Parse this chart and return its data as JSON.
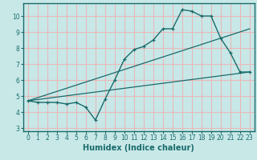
{
  "title": "",
  "xlabel": "Humidex (Indice chaleur)",
  "background_color": "#c8e8e8",
  "grid_color": "#e8b8b8",
  "line_color": "#1a6b6b",
  "xlim": [
    -0.5,
    23.5
  ],
  "ylim": [
    2.8,
    10.8
  ],
  "yticks": [
    3,
    4,
    5,
    6,
    7,
    8,
    9,
    10
  ],
  "xticks": [
    0,
    1,
    2,
    3,
    4,
    5,
    6,
    7,
    8,
    9,
    10,
    11,
    12,
    13,
    14,
    15,
    16,
    17,
    18,
    19,
    20,
    21,
    22,
    23
  ],
  "line1_x": [
    0,
    1,
    2,
    3,
    4,
    5,
    6,
    7,
    8,
    9,
    10,
    11,
    12,
    13,
    14,
    15,
    16,
    17,
    18,
    19,
    20,
    21,
    22,
    23
  ],
  "line1_y": [
    4.7,
    4.6,
    4.6,
    4.6,
    4.5,
    4.6,
    4.3,
    3.5,
    4.8,
    6.0,
    7.3,
    7.9,
    8.1,
    8.5,
    9.2,
    9.2,
    10.4,
    10.3,
    10.0,
    10.0,
    8.6,
    7.7,
    6.5,
    6.5
  ],
  "line2_x": [
    0,
    23
  ],
  "line2_y": [
    4.7,
    9.2
  ],
  "line3_x": [
    0,
    23
  ],
  "line3_y": [
    4.7,
    6.5
  ],
  "tick_fontsize": 5.5,
  "xlabel_fontsize": 7
}
